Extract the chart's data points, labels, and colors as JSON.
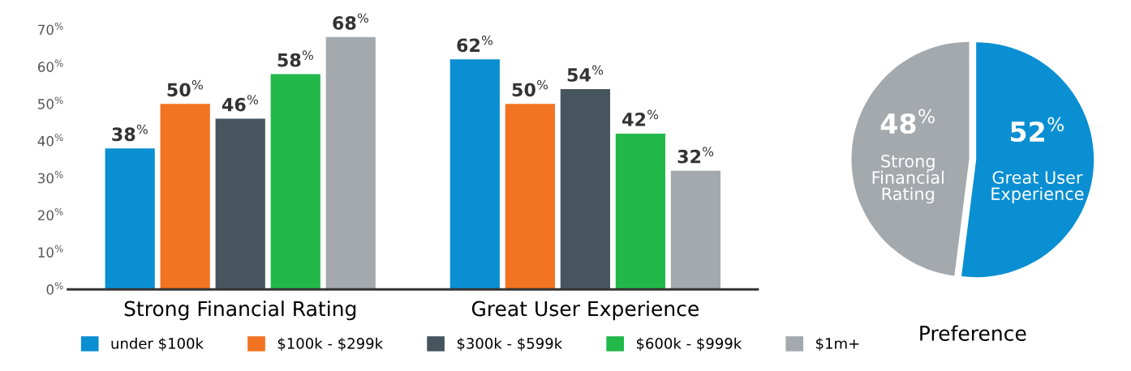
{
  "chart_data": [
    {
      "type": "bar",
      "categories": [
        "Strong Financial Rating",
        "Great User Experience"
      ],
      "ylim": [
        0,
        70
      ],
      "yticks": [
        {
          "value": 0,
          "label": "0$^{%}$"
        },
        {
          "value": 10,
          "label": "10$^{%}$"
        },
        {
          "value": 20,
          "label": "20$^{%}$"
        },
        {
          "value": 30,
          "label": "30$^{%}$"
        },
        {
          "value": 40,
          "label": "40$^{%}$"
        },
        {
          "value": 50,
          "label": "50$^{%}$"
        },
        {
          "value": 60,
          "label": "60$^{%}$"
        },
        {
          "value": 70,
          "label": "70$^{%}$"
        }
      ],
      "legend": "bottom",
      "series": [
        {
          "name": "under $100k",
          "color": "#0a8fd2",
          "values": [
            38,
            62
          ],
          "value_labels": [
            "38$^{%}$",
            "62$^{%}$"
          ]
        },
        {
          "name": "$100k - $299k",
          "color": "#f27321",
          "values": [
            50,
            50
          ],
          "value_labels": [
            "50$^{%}$",
            "50$^{%}$"
          ]
        },
        {
          "name": "$300k - $599k",
          "color": "#47555f",
          "values": [
            46,
            54
          ],
          "value_labels": [
            "46$^{%}$",
            "54$^{%}$"
          ]
        },
        {
          "name": "$600k - $999k",
          "color": "#22b94a",
          "values": [
            58,
            42
          ],
          "value_labels": [
            "58$^{%}$",
            "42$^{%}$"
          ]
        },
        {
          "name": "$1m+",
          "color": "#a4a9ad",
          "values": [
            68,
            32
          ],
          "value_labels": [
            "68$^{%}$",
            "32$^{%}$"
          ]
        }
      ]
    },
    {
      "type": "pie",
      "title": "Preference",
      "categories": [
        "Strong\nFinancial\nRating",
        "Great User\nExperience"
      ],
      "values": [
        48,
        52
      ],
      "colors": [
        "#a4a9ad",
        "#0a8fd2"
      ],
      "value_labels": [
        "48$^{%}$",
        "52$^{%}$"
      ]
    }
  ]
}
